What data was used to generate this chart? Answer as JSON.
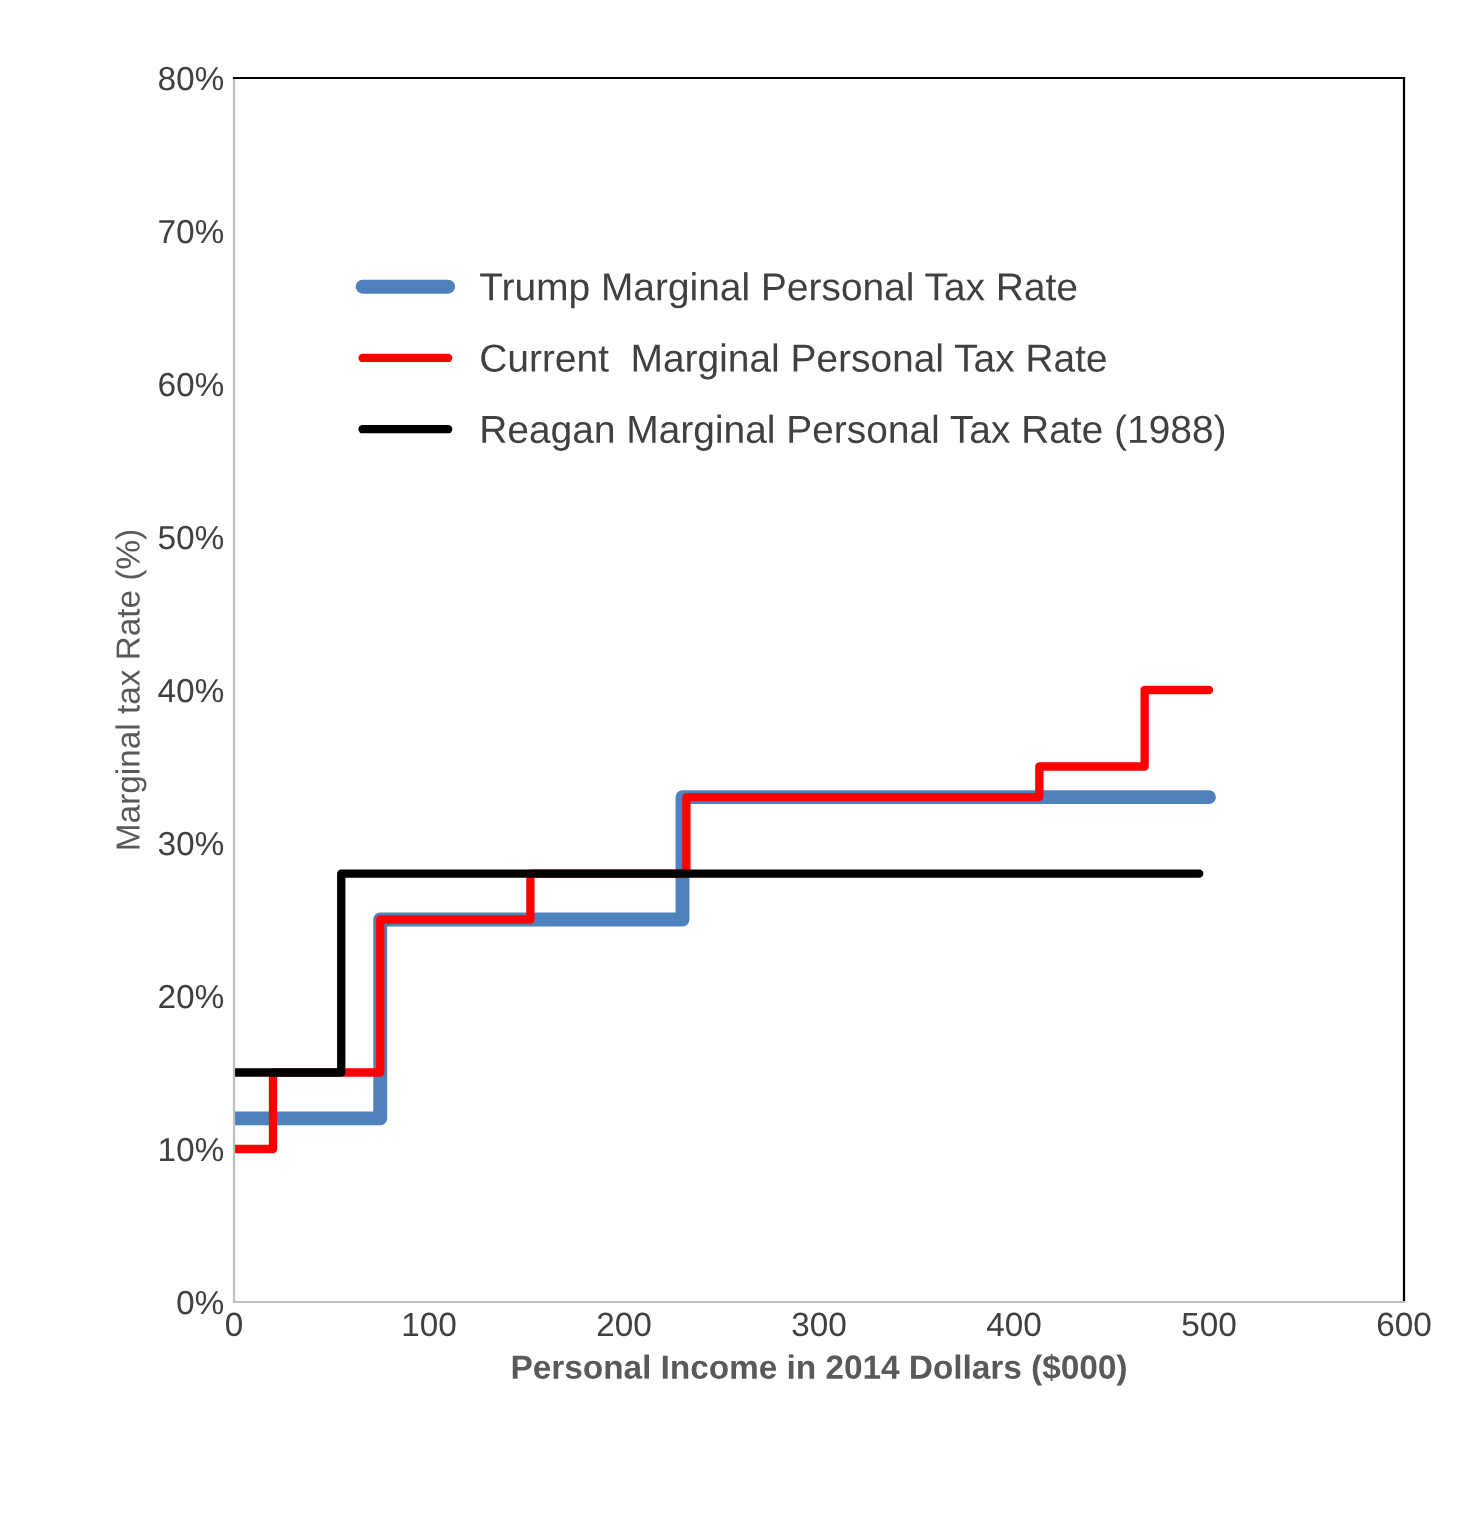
{
  "chart_data": {
    "type": "step",
    "xlabel": "Personal Income in 2014 Dollars ($000)",
    "ylabel": "Marginal tax Rate (%)",
    "xlim": [
      0,
      600
    ],
    "xticks": [
      0,
      100,
      200,
      300,
      400,
      500,
      600
    ],
    "ylim": [
      0,
      80
    ],
    "yticks": [
      {
        "value": 0,
        "label": "0%"
      },
      {
        "value": 10,
        "label": "10%"
      },
      {
        "value": 20,
        "label": "20%"
      },
      {
        "value": 30,
        "label": "30%"
      },
      {
        "value": 40,
        "label": "40%"
      },
      {
        "value": 50,
        "label": "50%"
      },
      {
        "value": 60,
        "label": "60%"
      },
      {
        "value": 70,
        "label": "70%"
      },
      {
        "value": 80,
        "label": "80%"
      }
    ],
    "grid": false,
    "legend": "top left",
    "series": [
      {
        "name": "Trump Marginal Personal Tax Rate",
        "color": "#4f81bd",
        "x": [
          0,
          75,
          230,
          500
        ],
        "values": [
          12,
          25,
          33,
          33
        ]
      },
      {
        "name": "Current  Marginal Personal Tax Rate",
        "color": "#ff0000",
        "x": [
          0,
          20,
          75,
          152,
          232,
          413,
          467,
          500
        ],
        "values": [
          10,
          15,
          25,
          28,
          33,
          35,
          40,
          40
        ]
      },
      {
        "name": "Reagan Marginal Personal Tax Rate (1988)",
        "color": "#000000",
        "x": [
          0,
          55,
          495
        ],
        "values": [
          15,
          28,
          28
        ]
      }
    ]
  }
}
